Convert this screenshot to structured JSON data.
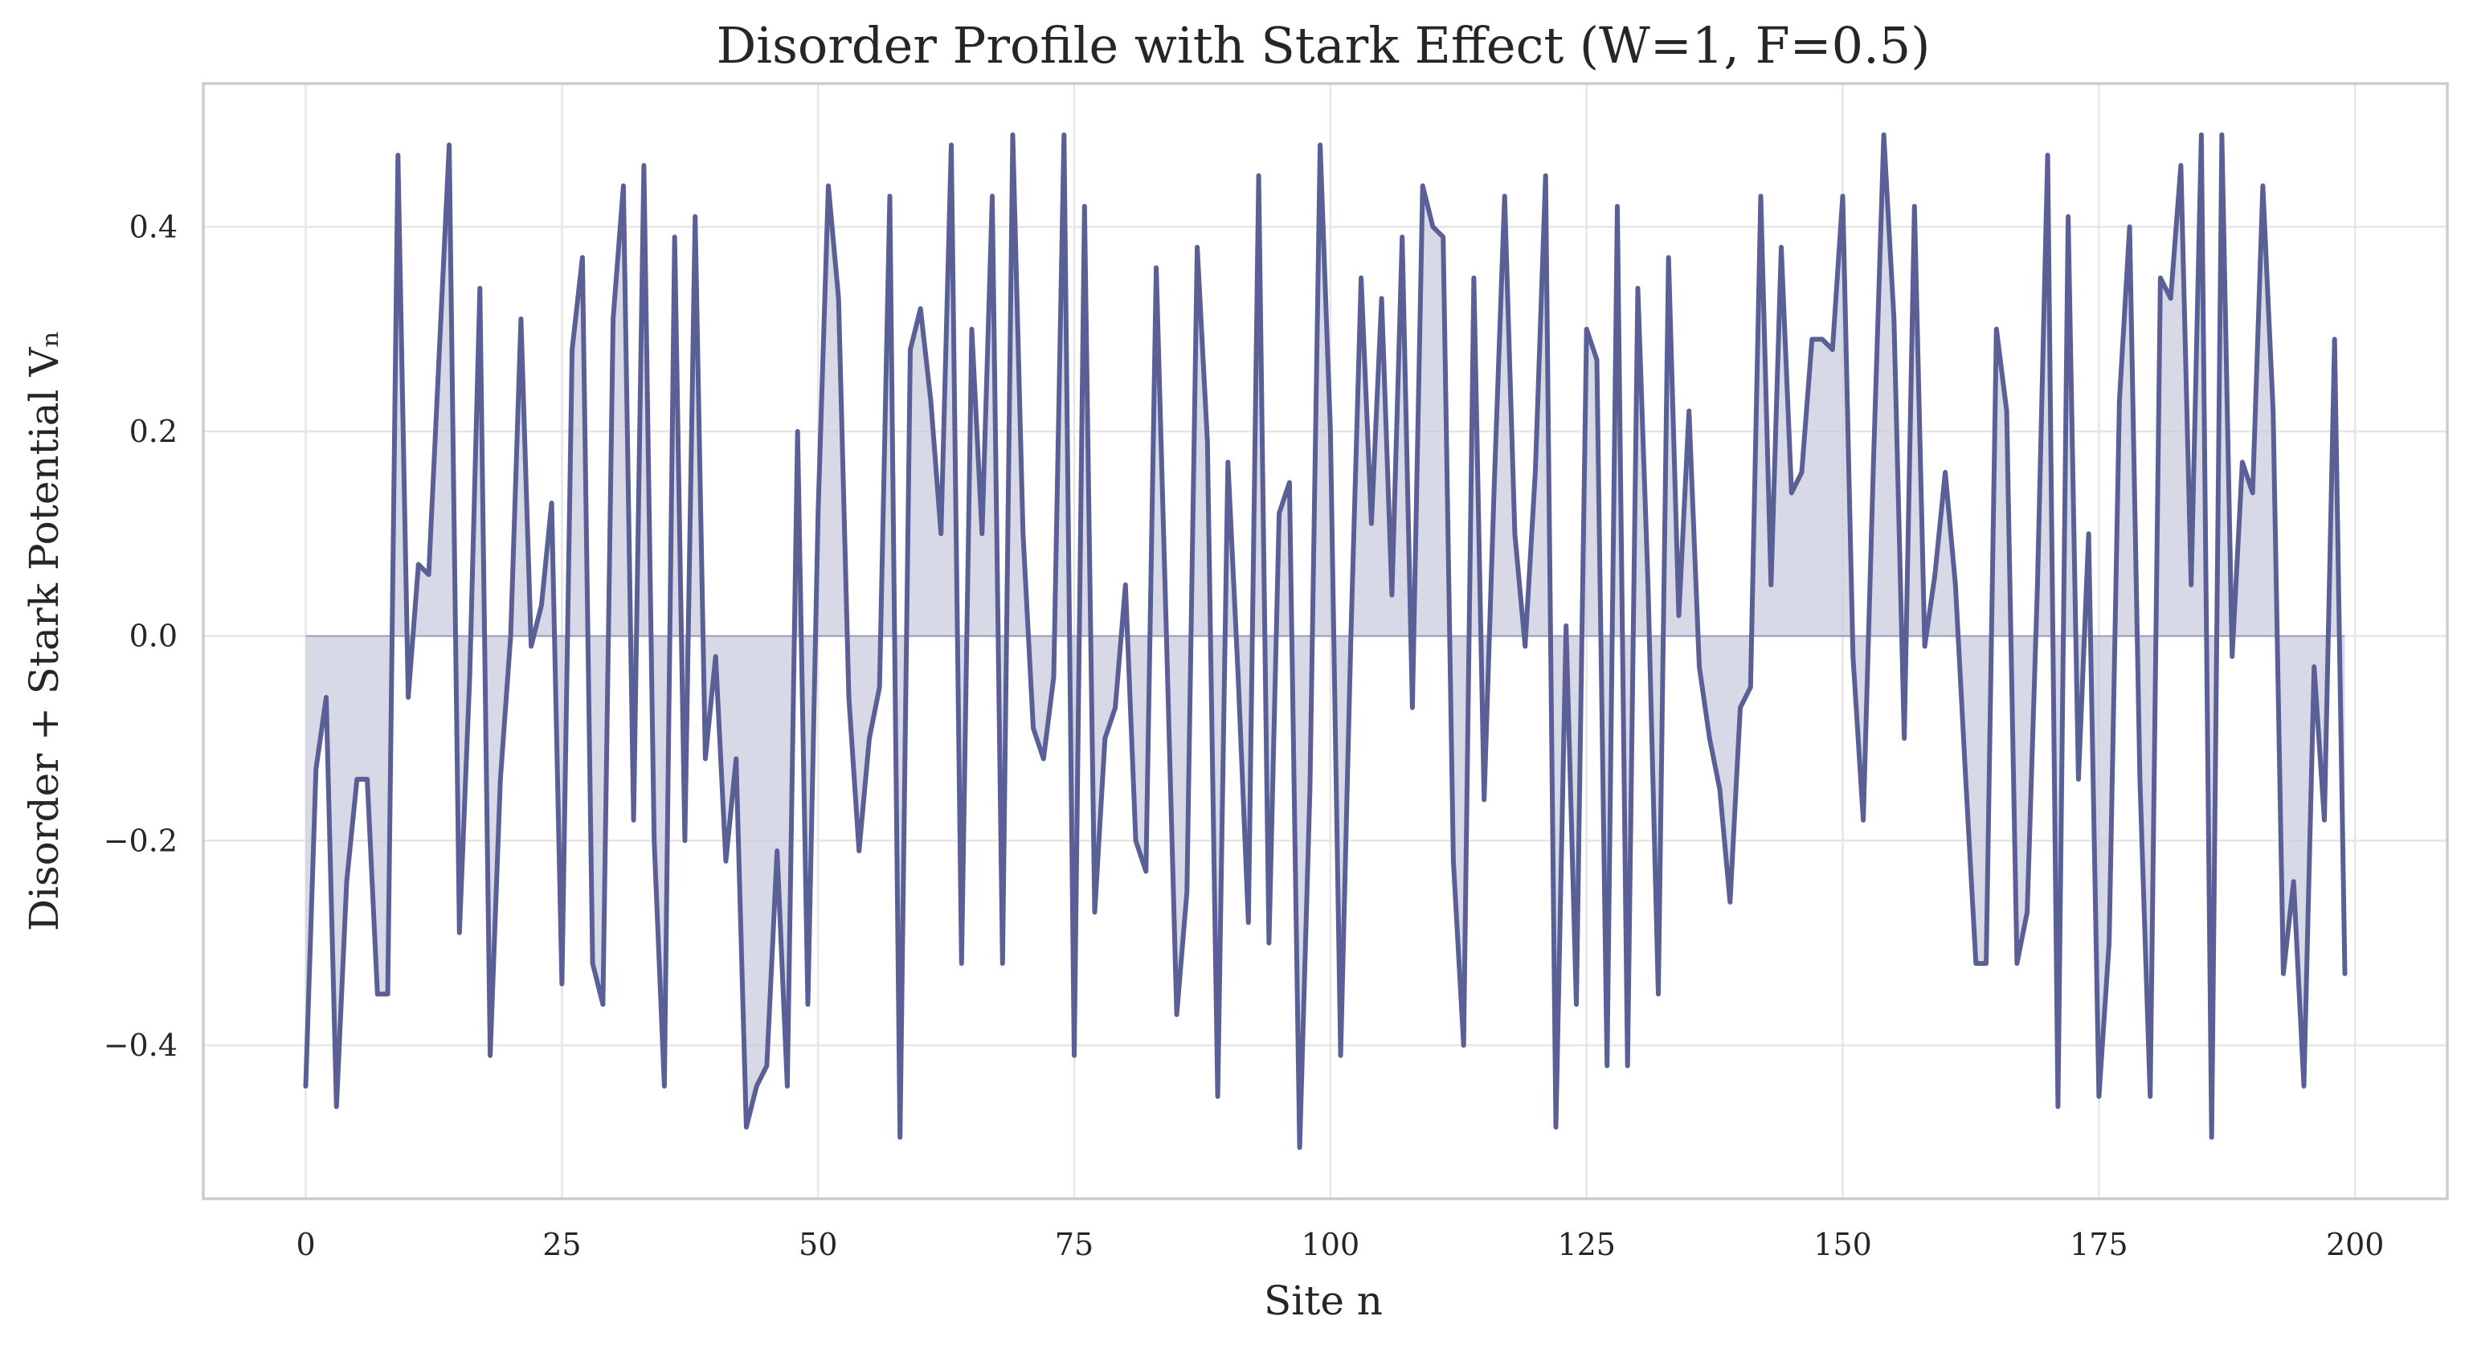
{
  "chart_data": {
    "type": "line",
    "title": "Disorder Profile with Stark Effect (W=1, F=0.5)",
    "xlabel": "Site n",
    "ylabel": "Disorder + Stark Potential Vₙ",
    "xlim": [
      -10,
      209
    ],
    "ylim": [
      -0.55,
      0.54
    ],
    "xticks": [
      0,
      25,
      50,
      75,
      100,
      125,
      150,
      175,
      200
    ],
    "yticks": [
      -0.4,
      -0.2,
      0.0,
      0.2,
      0.4
    ],
    "xtick_labels": [
      "0",
      "25",
      "50",
      "75",
      "100",
      "125",
      "150",
      "175",
      "200"
    ],
    "ytick_labels": [
      "−0.4",
      "−0.2",
      "0.0",
      "0.2",
      "0.4"
    ],
    "grid": true,
    "fill_to_zero": true,
    "line_color": "#5a5f96",
    "fill_color": "#c8c9dd",
    "series": [
      {
        "x": [
          0,
          1,
          2,
          3,
          4,
          5,
          6,
          7,
          8,
          9,
          10,
          11,
          12,
          13,
          14,
          15,
          16,
          17,
          18,
          19,
          20,
          21,
          22,
          23,
          24,
          25,
          26,
          27,
          28,
          29,
          30,
          31,
          32,
          33,
          34,
          35,
          36,
          37,
          38,
          39,
          40,
          41,
          42,
          43,
          44,
          45,
          46,
          47,
          48,
          49,
          50,
          51,
          52,
          53,
          54,
          55,
          56,
          57,
          58,
          59,
          60,
          61,
          62,
          63,
          64,
          65,
          66,
          67,
          68,
          69,
          70,
          71,
          72,
          73,
          74,
          75,
          76,
          77,
          78,
          79,
          80,
          81,
          82,
          83,
          84,
          85,
          86,
          87,
          88,
          89,
          90,
          91,
          92,
          93,
          94,
          95,
          96,
          97,
          98,
          99,
          100,
          101,
          102,
          103,
          104,
          105,
          106,
          107,
          108,
          109,
          110,
          111,
          112,
          113,
          114,
          115,
          116,
          117,
          118,
          119,
          120,
          121,
          122,
          123,
          124,
          125,
          126,
          127,
          128,
          129,
          130,
          131,
          132,
          133,
          134,
          135,
          136,
          137,
          138,
          139,
          140,
          141,
          142,
          143,
          144,
          145,
          146,
          147,
          148,
          149,
          150,
          151,
          152,
          153,
          154,
          155,
          156,
          157,
          158,
          159,
          160,
          161,
          162,
          163,
          164,
          165,
          166,
          167,
          168,
          169,
          170,
          171,
          172,
          173,
          174,
          175,
          176,
          177,
          178,
          179,
          180,
          181,
          182,
          183,
          184,
          185,
          186,
          187,
          188,
          189,
          190,
          191,
          192,
          193,
          194,
          195,
          196,
          197,
          198,
          199
        ],
        "values": [
          -0.44,
          -0.13,
          -0.06,
          -0.46,
          -0.24,
          -0.14,
          -0.14,
          -0.35,
          -0.35,
          0.47,
          -0.06,
          0.07,
          0.06,
          0.27,
          0.48,
          -0.29,
          -0.04,
          0.34,
          -0.41,
          -0.14,
          0.0,
          0.31,
          -0.01,
          0.03,
          0.13,
          -0.34,
          0.28,
          0.37,
          -0.32,
          -0.36,
          0.31,
          0.44,
          -0.18,
          0.46,
          -0.2,
          -0.44,
          0.39,
          -0.2,
          0.41,
          -0.12,
          -0.02,
          -0.22,
          -0.12,
          -0.48,
          -0.44,
          -0.42,
          -0.21,
          -0.44,
          0.2,
          -0.36,
          0.12,
          0.44,
          0.33,
          -0.06,
          -0.21,
          -0.1,
          -0.05,
          0.43,
          -0.49,
          0.28,
          0.32,
          0.23,
          0.1,
          0.48,
          -0.32,
          0.3,
          0.1,
          0.43,
          -0.32,
          0.49,
          0.1,
          -0.09,
          -0.12,
          -0.04,
          0.49,
          -0.41,
          0.42,
          -0.27,
          -0.1,
          -0.07,
          0.05,
          -0.2,
          -0.23,
          0.36,
          0.0,
          -0.37,
          -0.25,
          0.38,
          0.19,
          -0.45,
          0.17,
          -0.04,
          -0.28,
          0.45,
          -0.3,
          0.12,
          0.15,
          -0.5,
          -0.15,
          0.48,
          0.2,
          -0.41,
          0.0,
          0.35,
          0.11,
          0.33,
          0.04,
          0.39,
          -0.07,
          0.44,
          0.4,
          0.39,
          -0.22,
          -0.4,
          0.35,
          -0.16,
          0.15,
          0.43,
          0.1,
          -0.01,
          0.16,
          0.45,
          -0.48,
          0.01,
          -0.36,
          0.3,
          0.27,
          -0.42,
          0.42,
          -0.42,
          0.34,
          0.05,
          -0.35,
          0.37,
          0.02,
          0.22,
          -0.03,
          -0.1,
          -0.15,
          -0.26,
          -0.07,
          -0.05,
          0.43,
          0.05,
          0.38,
          0.14,
          0.16,
          0.29,
          0.29,
          0.28,
          0.43,
          -0.02,
          -0.18,
          0.17,
          0.49,
          0.31,
          -0.1,
          0.42,
          -0.01,
          0.06,
          0.16,
          0.05,
          -0.14,
          -0.32,
          -0.32,
          0.3,
          0.22,
          -0.32,
          -0.27,
          0.05,
          0.47,
          -0.46,
          0.41,
          -0.14,
          0.1,
          -0.45,
          -0.3,
          0.23,
          0.4,
          -0.14,
          -0.45,
          0.35,
          0.33,
          0.46,
          0.05,
          0.49,
          -0.49,
          0.49,
          -0.02,
          0.17,
          0.14,
          0.44,
          0.22,
          -0.33,
          -0.24,
          -0.44,
          -0.03,
          -0.18,
          0.29,
          -0.33
        ]
      }
    ]
  }
}
